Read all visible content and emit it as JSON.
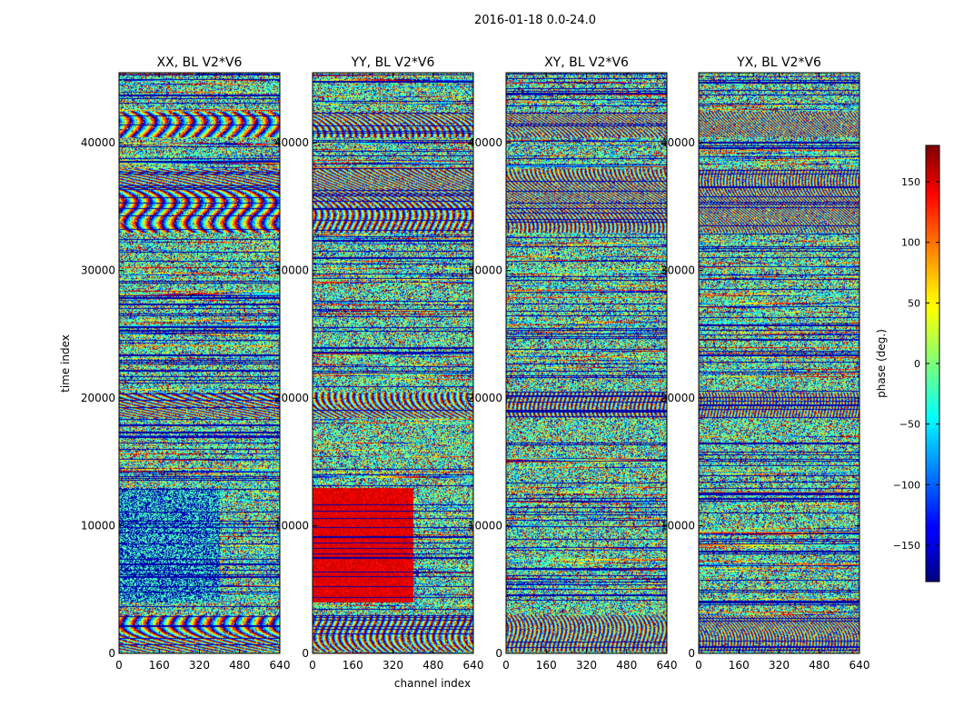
{
  "figure": {
    "suptitle": "2016-01-18 0.0-24.0"
  },
  "chart_data": {
    "type": "heatmap",
    "subplots": [
      {
        "title": "XX, BL V2*V6"
      },
      {
        "title": "YY, BL V2*V6"
      },
      {
        "title": "XY, BL V2*V6"
      },
      {
        "title": "YX, BL V2*V6"
      }
    ],
    "xlabel": "channel index",
    "ylabel": "time index",
    "xlim": [
      0,
      640
    ],
    "ylim": [
      0,
      45500
    ],
    "xticks": [
      0,
      160,
      320,
      480,
      640
    ],
    "yticks": [
      0,
      10000,
      20000,
      30000,
      40000
    ],
    "colorbar": {
      "label": "phase (deg.)",
      "vmin": -180,
      "vmax": 180,
      "ticks": [
        -150,
        -100,
        -50,
        0,
        50,
        100,
        150
      ],
      "tick_labels": [
        "−150",
        "−100",
        "−50",
        "0",
        "50",
        "100",
        "150"
      ],
      "colormap": "jet"
    },
    "notes": {
      "strong_fringe_bands_time": [
        [
          33000,
          38000
        ],
        [
          40500,
          42500
        ],
        [
          18500,
          20500
        ],
        [
          200,
          3000
        ]
      ],
      "flat_xx_block_time": [
        4000,
        13000
      ],
      "red_yy_block_time": [
        4000,
        13000
      ],
      "block_channel_edge": 400
    }
  }
}
